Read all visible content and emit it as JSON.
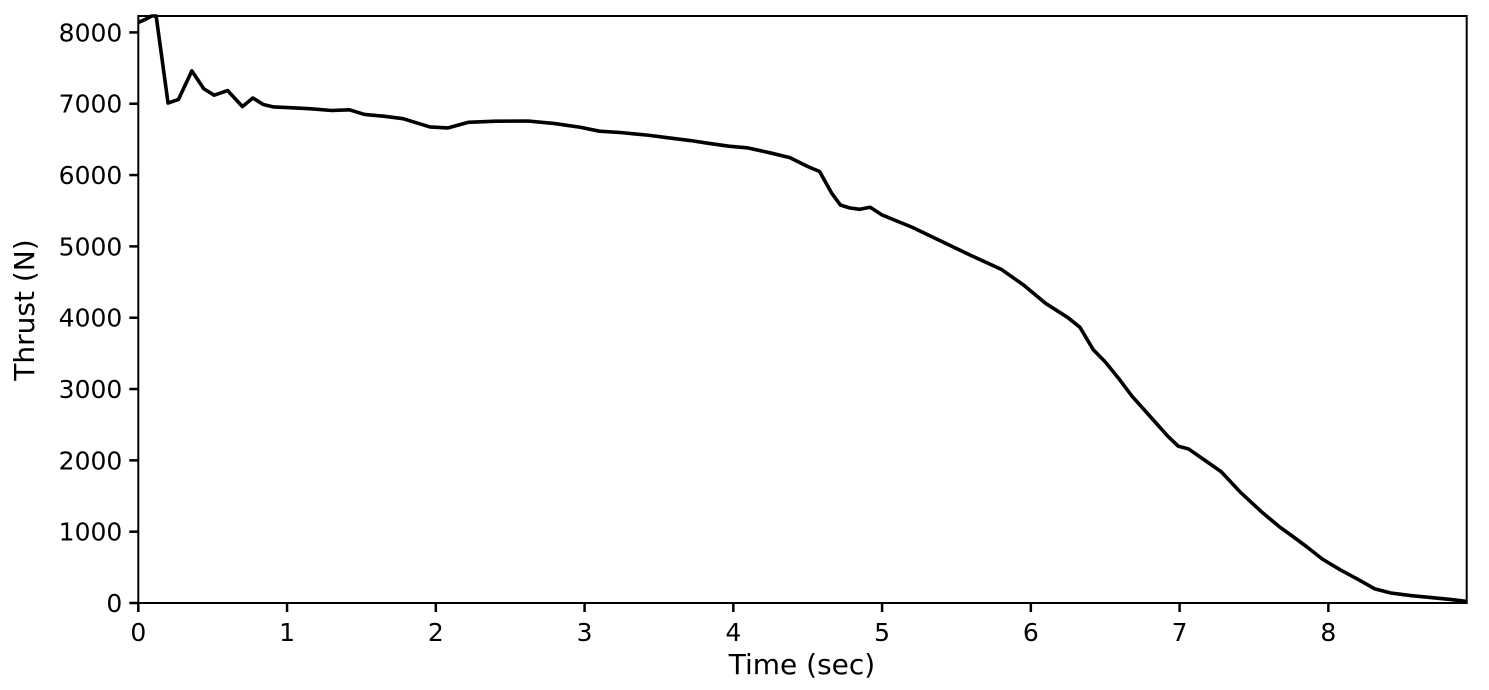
{
  "figure": {
    "background": "#ffffff",
    "plot_background": "#ffffff",
    "spine_color": "#000000"
  },
  "chart_data": {
    "type": "line",
    "title": "",
    "xlabel": "Time (sec)",
    "ylabel": "Thrust (N)",
    "xlim": [
      0,
      8.93
    ],
    "ylim": [
      0,
      8230
    ],
    "xticks": [
      0,
      1,
      2,
      3,
      4,
      5,
      6,
      7,
      8
    ],
    "yticks": [
      0,
      1000,
      2000,
      3000,
      4000,
      5000,
      6000,
      7000,
      8000
    ],
    "grid": false,
    "legend_position": "none",
    "line_color": "#000000",
    "line_width": 3.6,
    "series": [
      {
        "name": "thrust",
        "points": [
          [
            0.0,
            8140
          ],
          [
            0.05,
            8185
          ],
          [
            0.09,
            8230
          ],
          [
            0.12,
            8230
          ],
          [
            0.2,
            7010
          ],
          [
            0.27,
            7060
          ],
          [
            0.36,
            7460
          ],
          [
            0.44,
            7210
          ],
          [
            0.51,
            7120
          ],
          [
            0.6,
            7185
          ],
          [
            0.7,
            6960
          ],
          [
            0.77,
            7080
          ],
          [
            0.84,
            6990
          ],
          [
            0.91,
            6955
          ],
          [
            1.02,
            6945
          ],
          [
            1.15,
            6930
          ],
          [
            1.3,
            6905
          ],
          [
            1.42,
            6915
          ],
          [
            1.52,
            6850
          ],
          [
            1.65,
            6825
          ],
          [
            1.78,
            6790
          ],
          [
            1.96,
            6675
          ],
          [
            2.08,
            6660
          ],
          [
            2.22,
            6740
          ],
          [
            2.4,
            6755
          ],
          [
            2.62,
            6758
          ],
          [
            2.8,
            6722
          ],
          [
            2.97,
            6670
          ],
          [
            3.1,
            6615
          ],
          [
            3.25,
            6595
          ],
          [
            3.43,
            6558
          ],
          [
            3.57,
            6520
          ],
          [
            3.71,
            6484
          ],
          [
            3.85,
            6440
          ],
          [
            3.97,
            6405
          ],
          [
            4.1,
            6380
          ],
          [
            4.25,
            6310
          ],
          [
            4.38,
            6245
          ],
          [
            4.5,
            6120
          ],
          [
            4.58,
            6050
          ],
          [
            4.66,
            5750
          ],
          [
            4.72,
            5580
          ],
          [
            4.78,
            5540
          ],
          [
            4.85,
            5520
          ],
          [
            4.92,
            5548
          ],
          [
            5.0,
            5440
          ],
          [
            5.2,
            5270
          ],
          [
            5.4,
            5070
          ],
          [
            5.6,
            4870
          ],
          [
            5.8,
            4680
          ],
          [
            5.95,
            4460
          ],
          [
            6.1,
            4200
          ],
          [
            6.25,
            4000
          ],
          [
            6.33,
            3865
          ],
          [
            6.42,
            3550
          ],
          [
            6.5,
            3380
          ],
          [
            6.59,
            3150
          ],
          [
            6.68,
            2900
          ],
          [
            6.8,
            2620
          ],
          [
            6.92,
            2340
          ],
          [
            6.99,
            2200
          ],
          [
            7.06,
            2160
          ],
          [
            7.15,
            2030
          ],
          [
            7.28,
            1840
          ],
          [
            7.41,
            1550
          ],
          [
            7.55,
            1280
          ],
          [
            7.67,
            1070
          ],
          [
            7.75,
            950
          ],
          [
            7.86,
            780
          ],
          [
            7.96,
            615
          ],
          [
            8.08,
            465
          ],
          [
            8.2,
            330
          ],
          [
            8.31,
            200
          ],
          [
            8.42,
            140
          ],
          [
            8.56,
            103
          ],
          [
            8.7,
            74
          ],
          [
            8.82,
            50
          ],
          [
            8.93,
            22
          ]
        ]
      }
    ]
  }
}
